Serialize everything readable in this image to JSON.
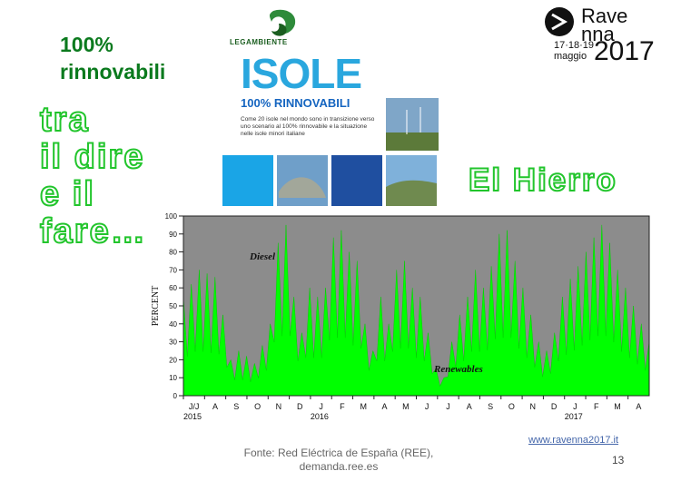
{
  "header": {
    "left_title": "100%\nrinnovabili",
    "outline_text": "tra\nil dire\ne il\nfare…",
    "island_name": "El Hierro"
  },
  "cover": {
    "org": "LEGAMBIENTE",
    "title": "ISOLE",
    "subtitle": "100% RINNOVABILI",
    "description": "Come 20 isole nel mondo sono in transizione verso uno scenario al 100% rinnovabile e la situazione nelle isole minori italiane"
  },
  "event": {
    "name_line1": "Rave",
    "name_line2": "nna",
    "dates": "17·18·19\nmaggio",
    "year": "2017"
  },
  "footer": {
    "source": "Fonte: Red Eléctrica de España (REE),\ndemanda.ree.es",
    "url": "www.ravenna2017.it",
    "page": "13"
  },
  "colors": {
    "renewables": "#00ff00",
    "diesel_bg": "#8c8c8c",
    "outline": "#22c52c",
    "title_green": "#0b7a1e"
  },
  "chart_data": {
    "type": "area",
    "ylabel": "PERCENT",
    "ylim": [
      0,
      100
    ],
    "yticks": [
      0,
      10,
      20,
      30,
      40,
      50,
      60,
      70,
      80,
      90,
      100
    ],
    "month_labels": [
      "J/J",
      "A",
      "S",
      "O",
      "N",
      "D",
      "J",
      "F",
      "M",
      "A",
      "M",
      "J",
      "J",
      "A",
      "S",
      "O",
      "N",
      "D",
      "J",
      "F",
      "M",
      "A"
    ],
    "year_labels": [
      {
        "label": "2015",
        "month_index": 0
      },
      {
        "label": "2016",
        "month_index": 6
      },
      {
        "label": "2017",
        "month_index": 18
      }
    ],
    "annotations": [
      "Diesel",
      "Renewables"
    ],
    "series": [
      {
        "name": "Renewables",
        "values": [
          55,
          62,
          70,
          68,
          66,
          45,
          20,
          25,
          22,
          18,
          28,
          40,
          85,
          95,
          55,
          35,
          60,
          55,
          60,
          88,
          92,
          80,
          75,
          40,
          25,
          55,
          40,
          70,
          75,
          60,
          55,
          35,
          15,
          10,
          30,
          45,
          55,
          70,
          60,
          72,
          90,
          92,
          75,
          60,
          45,
          30,
          25,
          35,
          55,
          65,
          72,
          80,
          88,
          95,
          85,
          70,
          60,
          50,
          40,
          30
        ]
      }
    ]
  }
}
